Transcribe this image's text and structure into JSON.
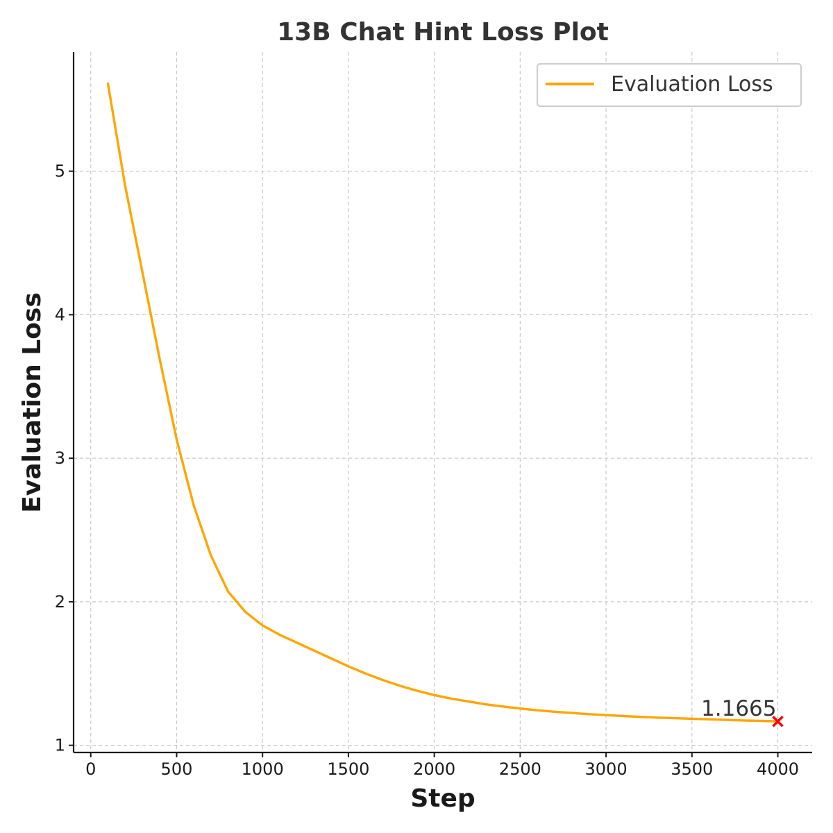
{
  "chart_data": {
    "type": "line",
    "title": "13B Chat Hint Loss Plot",
    "xlabel": "Step",
    "ylabel": "Evaluation Loss",
    "xlim": [
      -100,
      4200
    ],
    "ylim": [
      0.95,
      5.83
    ],
    "xticks": [
      0,
      500,
      1000,
      1500,
      2000,
      2500,
      3000,
      3500,
      4000
    ],
    "yticks": [
      1,
      2,
      3,
      4,
      5
    ],
    "grid": true,
    "legend_position": "top-right",
    "series": [
      {
        "name": "Evaluation Loss",
        "color": "#FFA500",
        "x": [
          100,
          200,
          300,
          400,
          500,
          600,
          700,
          800,
          900,
          1000,
          1100,
          1200,
          1300,
          1400,
          1500,
          1600,
          1700,
          1800,
          1900,
          2000,
          2100,
          2200,
          2300,
          2400,
          2500,
          2600,
          2700,
          2800,
          2900,
          3000,
          3100,
          3200,
          3300,
          3400,
          3500,
          3600,
          3700,
          3800,
          3900,
          4000
        ],
        "y": [
          5.61,
          4.9,
          4.3,
          3.7,
          3.13,
          2.67,
          2.32,
          2.07,
          1.93,
          1.835,
          1.77,
          1.715,
          1.66,
          1.605,
          1.55,
          1.5,
          1.455,
          1.415,
          1.38,
          1.35,
          1.325,
          1.305,
          1.285,
          1.27,
          1.256,
          1.244,
          1.234,
          1.225,
          1.217,
          1.21,
          1.204,
          1.198,
          1.193,
          1.189,
          1.185,
          1.181,
          1.177,
          1.173,
          1.17,
          1.1665
        ]
      }
    ],
    "annotations": [
      {
        "x": 4000,
        "y": 1.1665,
        "text": "1.1665",
        "marker": "x",
        "color": "#FF0000"
      }
    ]
  }
}
